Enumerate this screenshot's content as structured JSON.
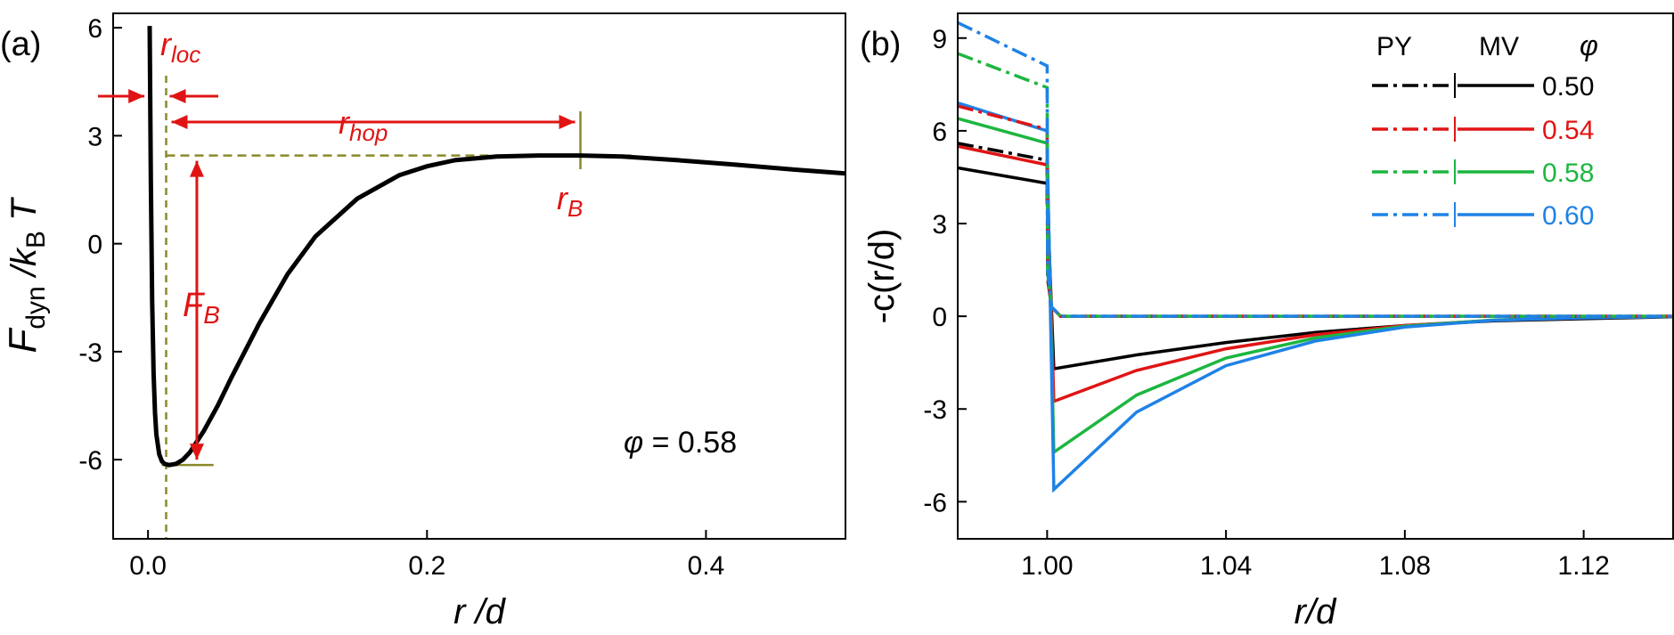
{
  "figure": {
    "panel_a_label": "(a)",
    "panel_b_label": "(b)"
  },
  "colors": {
    "black": "#000000",
    "red": "#e01414",
    "green": "#1db640",
    "blue": "#1f82e6",
    "guide": "#8a8a2a"
  },
  "chart_data": [
    {
      "type": "line",
      "panel": "(a)",
      "ylabel_main": "F",
      "ylabel_sub": "dyn",
      "ylabel_mid": " /k",
      "ylabel_sub2": "B",
      "ylabel_end": " T",
      "xlabel_main": "r",
      "xlabel_end": " /d",
      "xlim": [
        -0.025,
        0.5
      ],
      "ylim": [
        -8.2,
        6.4
      ],
      "xticks": [
        0.0,
        0.2,
        0.4
      ],
      "xtick_labels": [
        "0.0",
        "0.2",
        "0.4"
      ],
      "yticks": [
        6,
        3,
        0,
        -3,
        -6
      ],
      "ytick_labels": [
        "6",
        "3",
        "0",
        "-3",
        "-6"
      ],
      "series": [
        {
          "x": [
            0.0012,
            0.002,
            0.003,
            0.004,
            0.005,
            0.006,
            0.008,
            0.01,
            0.012,
            0.015,
            0.02,
            0.025,
            0.03,
            0.04,
            0.05,
            0.06,
            0.08,
            0.1,
            0.12,
            0.15,
            0.18,
            0.2,
            0.22,
            0.25,
            0.28,
            0.31,
            0.34,
            0.38,
            0.42,
            0.46,
            0.5
          ],
          "y": [
            6.05,
            1.8,
            -1.6,
            -3.6,
            -4.7,
            -5.3,
            -5.85,
            -6.05,
            -6.12,
            -6.15,
            -6.12,
            -6.0,
            -5.8,
            -5.2,
            -4.5,
            -3.7,
            -2.2,
            -0.85,
            0.2,
            1.25,
            1.9,
            2.15,
            2.32,
            2.42,
            2.45,
            2.45,
            2.42,
            2.32,
            2.2,
            2.07,
            1.95
          ]
        }
      ],
      "annotations": {
        "r_loc": "loc",
        "r_hop": "hop",
        "r_B": "B",
        "F_B": "B",
        "r_sym": "r",
        "F_sym": "F",
        "phi_symbol": "φ",
        "phi_text": " = 0.58"
      },
      "markers": {
        "r_loc_x": 0.013,
        "r_B_x": 0.31,
        "min_y": -6.15,
        "barrier_y": 2.45
      }
    },
    {
      "type": "line",
      "panel": "(b)",
      "ylabel_text": "-c(r/d)",
      "xlabel_text": "r/d",
      "xlim": [
        0.98,
        1.14
      ],
      "ylim": [
        -7.2,
        9.8
      ],
      "xticks": [
        1.0,
        1.04,
        1.08,
        1.12
      ],
      "xtick_labels": [
        "1.00",
        "1.04",
        "1.08",
        "1.12"
      ],
      "yticks": [
        9,
        6,
        3,
        0,
        -3,
        -6
      ],
      "ytick_labels": [
        "9",
        "6",
        "3",
        "0",
        "-3",
        "-6"
      ],
      "legend": {
        "col_py": "PY",
        "col_mv": "MV",
        "col_phi": "φ",
        "entries": [
          "0.50",
          "0.54",
          "0.58",
          "0.60"
        ]
      },
      "series": [
        {
          "phi": "0.50",
          "color": "#000000",
          "py": {
            "x": [
              0.98,
              1.0,
              1.0001,
              1.001,
              1.003,
              1.14
            ],
            "y": [
              5.6,
              5.05,
              1.2,
              0.3,
              0.0,
              0.0
            ]
          },
          "mv": {
            "x": [
              0.98,
              1.0,
              1.0,
              1.0015,
              1.02,
              1.04,
              1.06,
              1.08,
              1.1,
              1.12,
              1.14
            ],
            "y": [
              4.8,
              4.3,
              3.8,
              -1.7,
              -1.25,
              -0.85,
              -0.52,
              -0.3,
              -0.15,
              -0.08,
              -0.02
            ]
          }
        },
        {
          "phi": "0.54",
          "color": "#e01414",
          "py": {
            "x": [
              0.98,
              1.0,
              1.0001,
              1.001,
              1.003,
              1.14
            ],
            "y": [
              6.8,
              6.05,
              1.3,
              0.3,
              0.0,
              0.0
            ]
          },
          "mv": {
            "x": [
              0.98,
              1.0,
              1.0,
              1.0015,
              1.02,
              1.04,
              1.06,
              1.08,
              1.1,
              1.12,
              1.14
            ],
            "y": [
              5.5,
              4.9,
              4.5,
              -2.75,
              -1.75,
              -1.05,
              -0.6,
              -0.3,
              -0.13,
              -0.05,
              -0.01
            ]
          }
        },
        {
          "phi": "0.58",
          "color": "#1db640",
          "py": {
            "x": [
              0.98,
              1.0,
              1.0001,
              1.001,
              1.003,
              1.14
            ],
            "y": [
              8.5,
              7.4,
              1.4,
              0.3,
              0.0,
              0.0
            ]
          },
          "mv": {
            "x": [
              0.98,
              1.0,
              1.0,
              1.0015,
              1.02,
              1.04,
              1.06,
              1.08,
              1.1,
              1.12,
              1.14
            ],
            "y": [
              6.4,
              5.6,
              5.2,
              -4.4,
              -2.55,
              -1.35,
              -0.7,
              -0.32,
              -0.12,
              -0.04,
              -0.01
            ]
          }
        },
        {
          "phi": "0.60",
          "color": "#1f82e6",
          "py": {
            "x": [
              0.98,
              1.0,
              1.0001,
              1.001,
              1.003,
              1.14
            ],
            "y": [
              9.5,
              8.1,
              1.5,
              0.3,
              0.0,
              0.0
            ]
          },
          "mv": {
            "x": [
              0.98,
              1.0,
              1.0,
              1.0015,
              1.02,
              1.04,
              1.06,
              1.08,
              1.1,
              1.12,
              1.14
            ],
            "y": [
              6.9,
              6.0,
              5.6,
              -5.6,
              -3.1,
              -1.6,
              -0.8,
              -0.35,
              -0.13,
              -0.05,
              -0.01
            ]
          }
        }
      ]
    }
  ]
}
